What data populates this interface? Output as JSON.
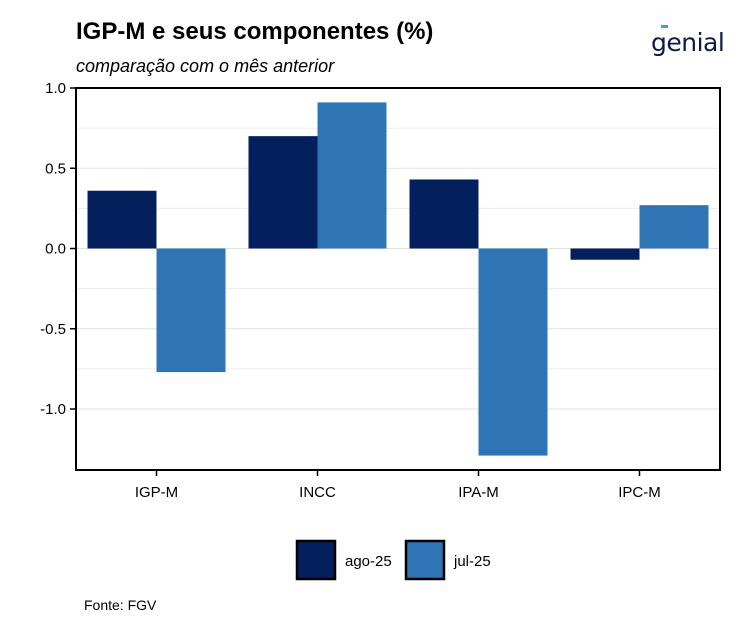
{
  "title": "IGP-M e seus componentes (%)",
  "subtitle": "comparação com o mês anterior",
  "logo_text": "genial",
  "source": "Fonte: FGV",
  "colors": {
    "ago-25": "#03205c",
    "jul-25": "#2e75b6"
  },
  "chart_data": {
    "type": "bar",
    "categories": [
      "IGP-M",
      "INCC",
      "IPA-M",
      "IPC-M"
    ],
    "series": [
      {
        "name": "ago-25",
        "values": [
          0.36,
          0.7,
          0.43,
          -0.07
        ]
      },
      {
        "name": "jul-25",
        "values": [
          -0.77,
          0.91,
          -1.29,
          0.27
        ]
      }
    ],
    "yticks": [
      1.0,
      0.5,
      0.0,
      -0.5,
      -1.0
    ],
    "ytick_labels": [
      "1.0",
      "0.5",
      "0.0",
      "-0.5",
      "-1.0"
    ],
    "ylim": [
      -1.38,
      1.0
    ],
    "grid": true,
    "legend_position": "bottom"
  }
}
